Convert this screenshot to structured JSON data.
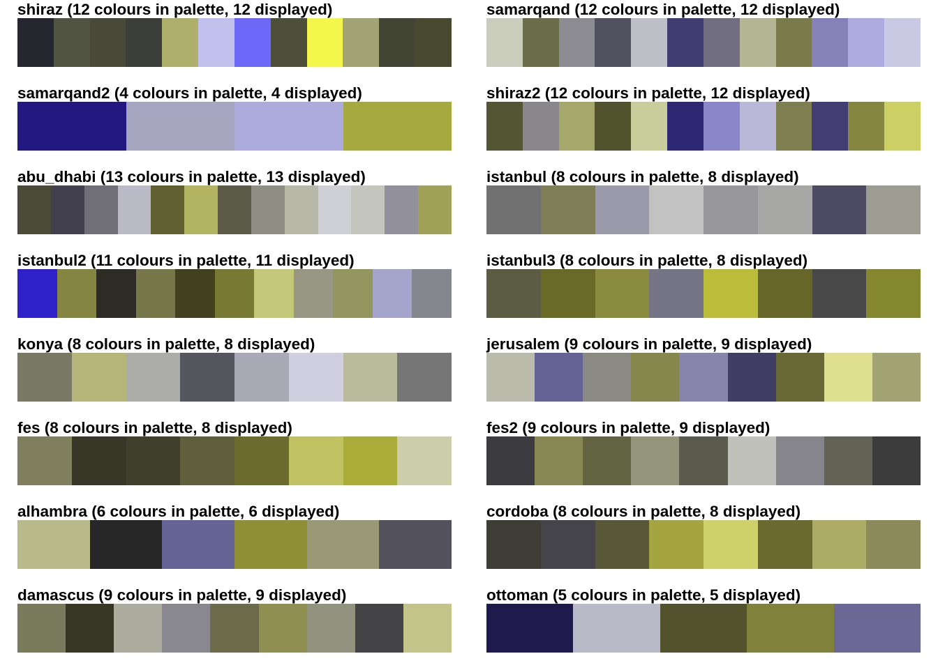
{
  "chart_data": {
    "type": "table",
    "panels": [
      {
        "title": "shiraz (12 colours in palette, 12 displayed)",
        "colors": [
          "#26272e",
          "#525442",
          "#484a37",
          "#3c3e39",
          "#aeaf6b",
          "#c1c1ed",
          "#6e68f8",
          "#4e4f39",
          "#f4f74b",
          "#a3a475",
          "#424434",
          "#494831"
        ]
      },
      {
        "title": "samarqand (12 colours in palette, 12 displayed)",
        "colors": [
          "#caccbc",
          "#6b6c48",
          "#8d8c92",
          "#525160",
          "#bfbfc7",
          "#403d72",
          "#706e80",
          "#b4b592",
          "#797a4a",
          "#8482b9",
          "#adabe0",
          "#c9c9e3"
        ]
      },
      {
        "title": "samarqand2 (4 colours in palette, 4 displayed)",
        "colors": [
          "#22187f",
          "#a7a6c1",
          "#acabdb",
          "#a6a840"
        ]
      },
      {
        "title": "shiraz2 (12 colours in palette, 12 displayed)",
        "colors": [
          "#545633",
          "#89878c",
          "#a5a76b",
          "#51532c",
          "#c9cd9b",
          "#2e2873",
          "#8987ca",
          "#b9b9d7",
          "#7e7f50",
          "#423d73",
          "#858740",
          "#cccf63"
        ]
      },
      {
        "title": "abu_dhabi (13 colours in palette, 13 displayed)",
        "colors": [
          "#4a4a37",
          "#42404e",
          "#717079",
          "#babac7",
          "#5f5f31",
          "#b4b562",
          "#5b5b48",
          "#8e8e83",
          "#b7b8a5",
          "#cfcfd6",
          "#c4c5bd",
          "#91909b",
          "#a0a25a"
        ]
      },
      {
        "title": "istanbul (8 colours in palette, 8 displayed)",
        "colors": [
          "#717171",
          "#7e7e56",
          "#9b9aaa",
          "#c2c2c2",
          "#98989c",
          "#a7a7a6",
          "#4c4b63",
          "#9c9c92"
        ]
      },
      {
        "title": "istanbul2 (11 colours in palette, 11 displayed)",
        "colors": [
          "#2f21c9",
          "#848540",
          "#2c2c24",
          "#777849",
          "#41411e",
          "#787a33",
          "#c4c879",
          "#979784",
          "#94965f",
          "#a5a5cc",
          "#86868f"
        ]
      },
      {
        "title": "istanbul3 (8 colours in palette, 8 displayed)",
        "colors": [
          "#5c5c44",
          "#6a6a27",
          "#8a8b3c",
          "#767586",
          "#bbbc39",
          "#666628",
          "#484848",
          "#85872f"
        ]
      },
      {
        "title": "konya (8 colours in palette, 8 displayed)",
        "colors": [
          "#7a7a64",
          "#b6b67a",
          "#acada8",
          "#55555d",
          "#aaaab7",
          "#cfcfe0",
          "#b9bb9c",
          "#767676"
        ]
      },
      {
        "title": "jerusalem (9 colours in palette, 9 displayed)",
        "colors": [
          "#babbab",
          "#656396",
          "#8a8a82",
          "#85874c",
          "#8785ab",
          "#403e65",
          "#686834",
          "#dfdf90",
          "#a2a474"
        ]
      },
      {
        "title": "fes (8 colours in palette, 8 displayed)",
        "colors": [
          "#7f7f5d",
          "#383828",
          "#40402c",
          "#5f5f3c",
          "#6c6c2e",
          "#c1c261",
          "#abad3a",
          "#cccda9"
        ]
      },
      {
        "title": "fes2 (9 colours in palette, 9 displayed)",
        "colors": [
          "#3c3c40",
          "#868753",
          "#636441",
          "#95957b",
          "#5a5a4d",
          "#c1c1bc",
          "#86858c",
          "#626255",
          "#3c3c3c"
        ]
      },
      {
        "title": "alhambra (6 colours in palette, 6 displayed)",
        "colors": [
          "#b9ba89",
          "#272727",
          "#666497",
          "#8f9035",
          "#999a75",
          "#52515c"
        ]
      },
      {
        "title": "cordoba (8 colours in palette, 8 displayed)",
        "colors": [
          "#3e3e36",
          "#45444b",
          "#585838",
          "#a4a540",
          "#ced06a",
          "#696930",
          "#acac67",
          "#8a8a5a"
        ]
      },
      {
        "title": "damascus (9 colours in palette, 9 displayed)",
        "colors": [
          "#7a7a5d",
          "#373726",
          "#acad9e",
          "#89888e",
          "#6b6b4a",
          "#8e8f51",
          "#92937e",
          "#444446",
          "#c3c48a"
        ]
      },
      {
        "title": "ottoman (5 colours in palette, 5 displayed)",
        "colors": [
          "#1e1b4c",
          "#bab9c7",
          "#52532d",
          "#80813a",
          "#6b6895"
        ]
      }
    ]
  }
}
